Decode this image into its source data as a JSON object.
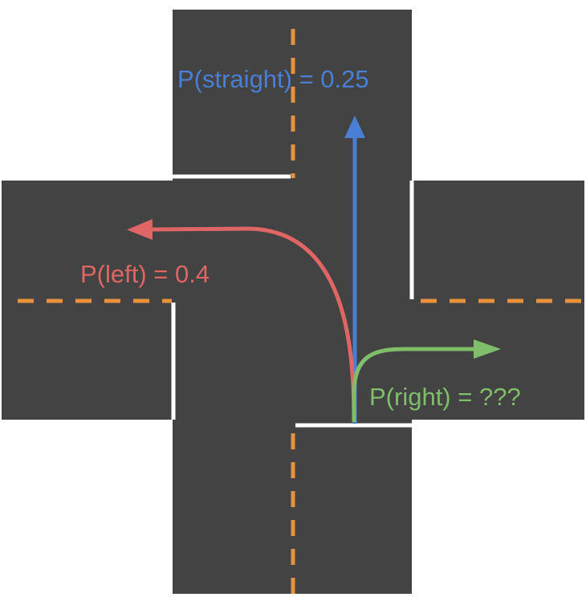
{
  "colors": {
    "background": "#ffffff",
    "road": "#434343",
    "center_line": "#e8933b",
    "stop_line": "#ffffff",
    "straight": "#4a7fd6",
    "left": "#e06666",
    "right": "#7fbf6a"
  },
  "turns": {
    "straight": {
      "label": "P(straight) = 0.25",
      "icon": "arrow-up-icon"
    },
    "left": {
      "label": "P(left) = 0.4",
      "icon": "curved-arrow-left-icon"
    },
    "right": {
      "label": "P(right) = ???",
      "icon": "curved-arrow-right-icon"
    }
  }
}
